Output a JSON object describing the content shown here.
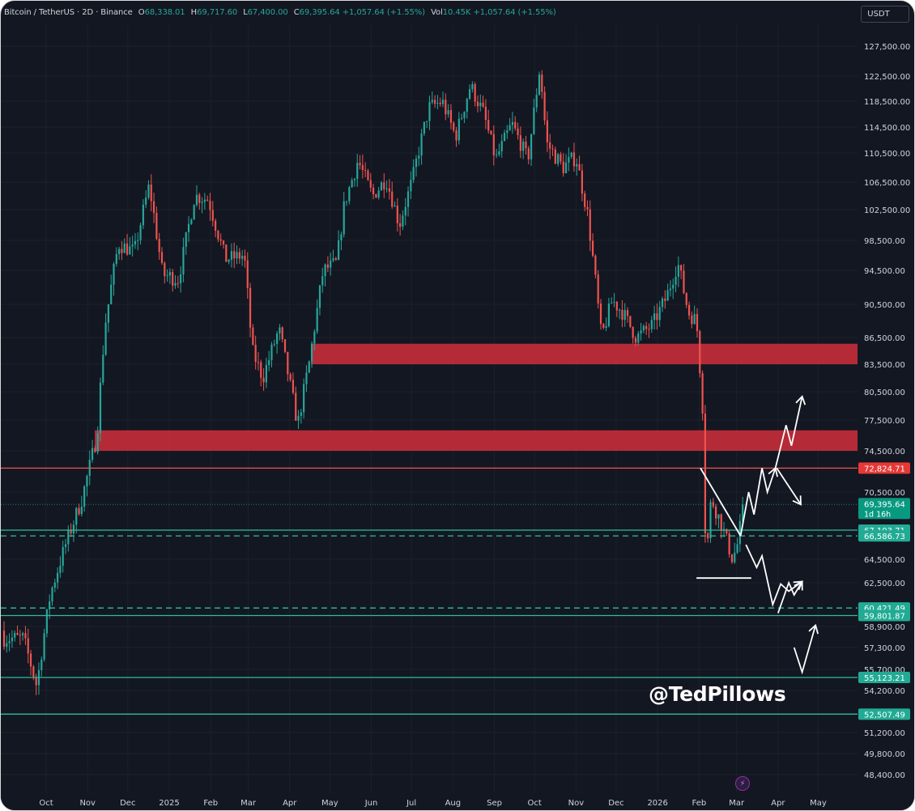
{
  "header": {
    "symbol": "Bitcoin / TetherUS · 2D · Binance",
    "open_label": "O",
    "open": "68,338.01",
    "high_label": "H",
    "high": "69,717.60",
    "low_label": "L",
    "low": "67,400.00",
    "close_label": "C",
    "close": "69,395.64",
    "change": "+1,057.64 (+1.55%)",
    "vol_label": "Vol",
    "vol": "10.45K",
    "vol_change": "+1,057.64 (+1.55%)"
  },
  "currency": "USDT",
  "watermark": "@TedPillows",
  "colors": {
    "background": "#131722",
    "up": "#26a69a",
    "down": "#ef5350",
    "zone": "#c62e3a",
    "level": "#2ebd9c",
    "axis_text": "#d1d4dc"
  },
  "chart_data": {
    "type": "candlestick",
    "symbol": "BTCUSDT",
    "timeframe": "2D",
    "price_axis": {
      "ticks": [
        "127,500.00",
        "122,500.00",
        "118,500.00",
        "114,500.00",
        "110,500.00",
        "106,500.00",
        "102,500.00",
        "98,500.00",
        "94,500.00",
        "90,500.00",
        "86,500.00",
        "83,500.00",
        "80,500.00",
        "77,500.00",
        "74,500.00",
        "70,500.00",
        "64,500.00",
        "62,500.00",
        "58,900.00",
        "57,300.00",
        "55,700.00",
        "54,200.00",
        "51,200.00",
        "49,800.00",
        "48,400.00"
      ]
    },
    "time_axis": {
      "ticks": [
        "Oct",
        "Nov",
        "Dec",
        "2025",
        "Feb",
        "Mar",
        "Apr",
        "May",
        "Jun",
        "Jul",
        "Aug",
        "Sep",
        "Oct",
        "Nov",
        "Dec",
        "2026",
        "Feb",
        "Mar",
        "Apr",
        "May"
      ]
    },
    "zones": [
      {
        "low": 83500,
        "high": 85800,
        "color": "#c62e3a"
      },
      {
        "low": 74500,
        "high": 76500,
        "color": "#c62e3a"
      }
    ],
    "levels": [
      {
        "price": 72824.71,
        "label": "72,824.71",
        "style": "solid",
        "color": "#ef5350"
      },
      {
        "price": 69395.64,
        "label": "69,395.64",
        "sublabel": "1d 16h",
        "style": "current",
        "color": "#26a69a"
      },
      {
        "price": 67103.71,
        "label": "67,103.71",
        "style": "solid",
        "color": "#2ebd9c"
      },
      {
        "price": 66586.73,
        "label": "66,586.73",
        "style": "dashed",
        "color": "#2ebd9c"
      },
      {
        "price": 60421.49,
        "label": "60,421.49",
        "style": "dashed",
        "color": "#2ebd9c"
      },
      {
        "price": 59801.87,
        "label": "59,801.87",
        "style": "solid",
        "color": "#2ebd9c"
      },
      {
        "price": 55123.21,
        "label": "55,123.21",
        "style": "solid",
        "color": "#2ebd9c"
      },
      {
        "price": 52507.49,
        "label": "52,507.49",
        "style": "solid",
        "color": "#2ebd9c"
      }
    ],
    "keypoints": [
      [
        "2024-09-14",
        58000
      ],
      [
        "2024-09-24",
        54500
      ],
      [
        "2024-10-04",
        61500
      ],
      [
        "2024-10-16",
        66000
      ],
      [
        "2024-10-28",
        70000
      ],
      [
        "2024-11-08",
        76000
      ],
      [
        "2024-11-14",
        88000
      ],
      [
        "2024-11-24",
        98000
      ],
      [
        "2024-12-06",
        97000
      ],
      [
        "2024-12-17",
        106000
      ],
      [
        "2024-12-27",
        94000
      ],
      [
        "2025-01-08",
        93500
      ],
      [
        "2025-01-20",
        104500
      ],
      [
        "2025-01-30",
        104000
      ],
      [
        "2025-02-12",
        96000
      ],
      [
        "2025-02-26",
        96500
      ],
      [
        "2025-03-04",
        85000
      ],
      [
        "2025-03-12",
        82000
      ],
      [
        "2025-03-24",
        87500
      ],
      [
        "2025-04-07",
        77000
      ],
      [
        "2025-04-16",
        84000
      ],
      [
        "2025-04-26",
        94500
      ],
      [
        "2025-05-06",
        95500
      ],
      [
        "2025-05-12",
        103500
      ],
      [
        "2025-05-22",
        109500
      ],
      [
        "2025-06-02",
        104500
      ],
      [
        "2025-06-12",
        107000
      ],
      [
        "2025-06-22",
        100500
      ],
      [
        "2025-07-02",
        107000
      ],
      [
        "2025-07-14",
        117500
      ],
      [
        "2025-07-24",
        118500
      ],
      [
        "2025-08-03",
        113000
      ],
      [
        "2025-08-14",
        121000
      ],
      [
        "2025-08-24",
        116500
      ],
      [
        "2025-09-02",
        109500
      ],
      [
        "2025-09-14",
        115000
      ],
      [
        "2025-09-26",
        109500
      ],
      [
        "2025-10-05",
        124000
      ],
      [
        "2025-10-10",
        112000
      ],
      [
        "2025-10-22",
        108500
      ],
      [
        "2025-11-01",
        110000
      ],
      [
        "2025-11-10",
        101500
      ],
      [
        "2025-11-20",
        86500
      ],
      [
        "2025-11-28",
        91000
      ],
      [
        "2025-12-06",
        89500
      ],
      [
        "2025-12-16",
        86500
      ],
      [
        "2025-12-28",
        88000
      ],
      [
        "2026-01-08",
        91500
      ],
      [
        "2026-01-16",
        95500
      ],
      [
        "2026-01-24",
        89500
      ],
      [
        "2026-01-30",
        88500
      ],
      [
        "2026-02-04",
        78000
      ],
      [
        "2026-02-06",
        64000
      ],
      [
        "2026-02-10",
        70000
      ],
      [
        "2026-02-18",
        67500
      ],
      [
        "2026-02-26",
        64500
      ],
      [
        "2026-03-02",
        66000
      ],
      [
        "2026-03-06",
        69395.64
      ]
    ],
    "projection_paths": [
      [
        [
          "2026-02-02",
          72824.71
        ],
        [
          "2026-03-04",
          66586.73
        ]
      ],
      [
        [
          "2026-01-30",
          62900
        ],
        [
          "2026-03-12",
          62900
        ]
      ],
      [
        [
          "2026-03-04",
          66586.73
        ],
        [
          "2026-03-10",
          70500
        ],
        [
          "2026-03-14",
          68500
        ],
        [
          "2026-03-20",
          72824.71
        ],
        [
          "2026-03-24",
          70500
        ],
        [
          "2026-03-30",
          72824.71
        ]
      ],
      [
        [
          "2026-03-30",
          72824.71
        ],
        [
          "2026-04-07",
          77000
        ],
        [
          "2026-04-11",
          75000
        ],
        [
          "2026-04-19",
          80000
        ]
      ],
      [
        [
          "2026-03-31",
          72824.71
        ],
        [
          "2026-04-18",
          69395.64
        ]
      ],
      [
        [
          "2026-03-08",
          65800
        ],
        [
          "2026-03-16",
          63800
        ],
        [
          "2026-03-20",
          64800
        ],
        [
          "2026-03-28",
          60700
        ],
        [
          "2026-04-03",
          62400
        ],
        [
          "2026-04-09",
          61800
        ],
        [
          "2026-04-19",
          62600
        ]
      ],
      [
        [
          "2026-04-01",
          60000
        ],
        [
          "2026-04-09",
          62500
        ],
        [
          "2026-04-13",
          61500
        ],
        [
          "2026-04-19",
          62600
        ]
      ],
      [
        [
          "2026-04-13",
          57300
        ],
        [
          "2026-04-19",
          55500
        ],
        [
          "2026-04-29",
          59000
        ]
      ]
    ]
  }
}
